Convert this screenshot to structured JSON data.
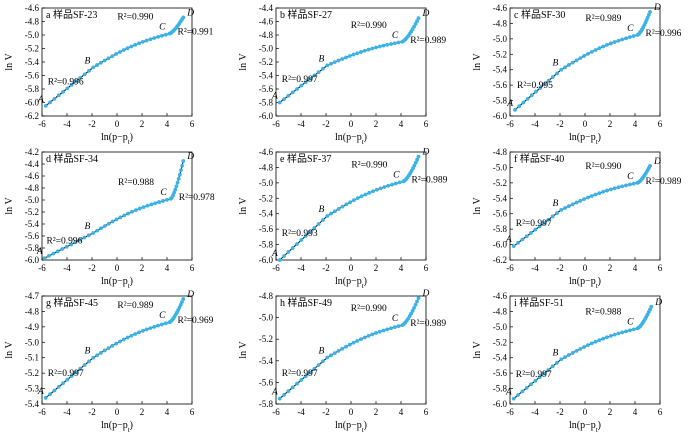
{
  "chart_data": [
    {
      "type": "scatter",
      "title": "a 样品SF-23",
      "xlabel": "ln(p−p_t)",
      "ylabel": "ln V",
      "xlim": [
        -6,
        6
      ],
      "ylim": [
        -6.2,
        -4.6
      ],
      "xticks": [
        "-6",
        "-4",
        "-2",
        "0",
        "2",
        "4",
        "6"
      ],
      "yticks": [
        "-6.2",
        "-6.0",
        "-5.8",
        "-5.6",
        "-5.4",
        "-5.2",
        "-5.0",
        "-4.8",
        "-4.6"
      ],
      "points": {
        "A": [
          -5.7,
          -6.05
        ],
        "B": [
          -1.9,
          -5.48
        ],
        "C": [
          4.2,
          -4.98
        ],
        "D": [
          5.3,
          -4.74
        ]
      },
      "segments": [
        {
          "from": "A",
          "to": "B",
          "r2": "R²=0.996"
        },
        {
          "from": "B",
          "to": "C",
          "r2": "R²=0.990"
        },
        {
          "from": "C",
          "to": "D",
          "r2": "R²=0.991"
        }
      ],
      "colors": {
        "points": "#3bb3e6",
        "line": "#111111"
      }
    },
    {
      "type": "scatter",
      "title": "b 样品SF-27",
      "xlabel": "ln(p−p_t)",
      "ylabel": "ln V",
      "xlim": [
        -6,
        6
      ],
      "ylim": [
        -6.0,
        -4.4
      ],
      "xticks": [
        "-6",
        "-4",
        "-2",
        "0",
        "2",
        "4",
        "6"
      ],
      "yticks": [
        "-6.0",
        "-5.8",
        "-5.6",
        "-5.4",
        "-5.2",
        "-5.0",
        "-4.8",
        "-4.6",
        "-4.4"
      ],
      "points": {
        "A": [
          -5.7,
          -5.8
        ],
        "B": [
          -1.9,
          -5.25
        ],
        "C": [
          4.1,
          -4.9
        ],
        "D": [
          5.4,
          -4.55
        ]
      },
      "segments": [
        {
          "from": "A",
          "to": "B",
          "r2": "R²=0.997"
        },
        {
          "from": "B",
          "to": "C",
          "r2": "R²=0.990"
        },
        {
          "from": "C",
          "to": "D",
          "r2": "R²=0.989"
        }
      ],
      "colors": {
        "points": "#3bb3e6",
        "line": "#111111"
      }
    },
    {
      "type": "scatter",
      "title": "c 样品SF-30",
      "xlabel": "ln(p−p_t)",
      "ylabel": "ln V",
      "xlim": [
        -6,
        6
      ],
      "ylim": [
        -6.0,
        -4.6
      ],
      "xticks": [
        "-6",
        "-4",
        "-2",
        "0",
        "2",
        "4",
        "6"
      ],
      "yticks": [
        "-6.0",
        "-5.8",
        "-5.6",
        "-5.4",
        "-5.2",
        "-5.0",
        "-4.8",
        "-4.6"
      ],
      "points": {
        "A": [
          -5.6,
          -5.92
        ],
        "B": [
          -1.9,
          -5.4
        ],
        "C": [
          4.2,
          -4.95
        ],
        "D": [
          5.2,
          -4.65
        ]
      },
      "segments": [
        {
          "from": "A",
          "to": "B",
          "r2": "R²=0.995"
        },
        {
          "from": "B",
          "to": "C",
          "r2": "R²=0.989"
        },
        {
          "from": "C",
          "to": "D",
          "r2": "R²=0.996"
        }
      ],
      "colors": {
        "points": "#3bb3e6",
        "line": "#111111"
      }
    },
    {
      "type": "scatter",
      "title": "d 样品SF-34",
      "xlabel": "ln(p−p_t)",
      "ylabel": "ln V",
      "xlim": [
        -6,
        6
      ],
      "ylim": [
        -6.0,
        -4.2
      ],
      "xticks": [
        "-6",
        "-4",
        "-2",
        "0",
        "2",
        "4",
        "6"
      ],
      "yticks": [
        "-6.0",
        "-5.8",
        "-5.6",
        "-5.4",
        "-5.2",
        "-5.0",
        "-4.8",
        "-4.6",
        "-4.4",
        "-4.2"
      ],
      "points": {
        "A": [
          -5.8,
          -5.97
        ],
        "B": [
          -1.9,
          -5.55
        ],
        "C": [
          4.3,
          -4.98
        ],
        "D": [
          5.3,
          -4.35
        ]
      },
      "segments": [
        {
          "from": "A",
          "to": "B",
          "r2": "R²=0.996"
        },
        {
          "from": "B",
          "to": "C",
          "r2": "R²=0.988"
        },
        {
          "from": "C",
          "to": "D",
          "r2": "R²=0.978"
        }
      ],
      "colors": {
        "points": "#3bb3e6",
        "line": "#111111"
      }
    },
    {
      "type": "scatter",
      "title": "e 样品SF-37",
      "xlabel": "ln(p−p_t)",
      "ylabel": "ln V",
      "xlim": [
        -6,
        6
      ],
      "ylim": [
        -6.0,
        -4.6
      ],
      "xticks": [
        "-6",
        "-4",
        "-2",
        "0",
        "2",
        "4",
        "6"
      ],
      "yticks": [
        "-6.0",
        "-5.8",
        "-5.6",
        "-5.4",
        "-5.2",
        "-5.0",
        "-4.8",
        "-4.6"
      ],
      "points": {
        "A": [
          -5.7,
          -6.0
        ],
        "B": [
          -1.9,
          -5.43
        ],
        "C": [
          4.2,
          -4.98
        ],
        "D": [
          5.4,
          -4.66
        ]
      },
      "segments": [
        {
          "from": "A",
          "to": "B",
          "r2": "R²=0.993"
        },
        {
          "from": "B",
          "to": "C",
          "r2": "R²=0.990"
        },
        {
          "from": "C",
          "to": "D",
          "r2": "R²=0.989"
        }
      ],
      "colors": {
        "points": "#3bb3e6",
        "line": "#111111"
      }
    },
    {
      "type": "scatter",
      "title": "f 样品SF-40",
      "xlabel": "ln(p−p_t)",
      "ylabel": "ln V",
      "xlim": [
        -6,
        6
      ],
      "ylim": [
        -6.2,
        -4.8
      ],
      "xticks": [
        "-6",
        "-4",
        "-2",
        "0",
        "2",
        "4",
        "6"
      ],
      "yticks": [
        "-6.2",
        "-6.0",
        "-5.8",
        "-5.6",
        "-5.4",
        "-5.2",
        "-5.0",
        "-4.8"
      ],
      "points": {
        "A": [
          -5.7,
          -6.02
        ],
        "B": [
          -1.9,
          -5.55
        ],
        "C": [
          4.2,
          -5.2
        ],
        "D": [
          5.2,
          -4.98
        ]
      },
      "segments": [
        {
          "from": "A",
          "to": "B",
          "r2": "R²=0.997"
        },
        {
          "from": "B",
          "to": "C",
          "r2": "R²=0.990"
        },
        {
          "from": "C",
          "to": "D",
          "r2": "R²=0.989"
        }
      ],
      "colors": {
        "points": "#3bb3e6",
        "line": "#111111"
      }
    },
    {
      "type": "scatter",
      "title": "g 样品SF-45",
      "xlabel": "ln(p−p_t)",
      "ylabel": "ln V",
      "xlim": [
        -6,
        6
      ],
      "ylim": [
        -5.4,
        -4.7
      ],
      "xticks": [
        "-6",
        "-4",
        "-2",
        "0",
        "2",
        "4",
        "6"
      ],
      "yticks": [
        "-5.4",
        "-5.3",
        "-5.2",
        "-5.1",
        "-5.0",
        "-4.9",
        "-4.8",
        "-4.7"
      ],
      "points": {
        "A": [
          -5.7,
          -5.36
        ],
        "B": [
          -1.9,
          -5.1
        ],
        "C": [
          4.2,
          -4.87
        ],
        "D": [
          5.3,
          -4.72
        ]
      },
      "segments": [
        {
          "from": "A",
          "to": "B",
          "r2": "R²=0.997"
        },
        {
          "from": "B",
          "to": "C",
          "r2": "R²=0.989"
        },
        {
          "from": "C",
          "to": "D",
          "r2": "R²=0.969"
        }
      ],
      "colors": {
        "points": "#3bb3e6",
        "line": "#111111"
      }
    },
    {
      "type": "scatter",
      "title": "h 样品SF-49",
      "xlabel": "ln(p−p_t)",
      "ylabel": "ln V",
      "xlim": [
        -6,
        6
      ],
      "ylim": [
        -5.8,
        -4.8
      ],
      "xticks": [
        "-6",
        "-4",
        "-2",
        "0",
        "2",
        "4",
        "6"
      ],
      "yticks": [
        "-5.8",
        "-5.6",
        "-5.4",
        "-5.2",
        "-5.0",
        "-4.8"
      ],
      "points": {
        "A": [
          -5.7,
          -5.75
        ],
        "B": [
          -1.9,
          -5.37
        ],
        "C": [
          4.1,
          -5.07
        ],
        "D": [
          5.4,
          -4.82
        ]
      },
      "segments": [
        {
          "from": "A",
          "to": "B",
          "r2": "R²=0.997"
        },
        {
          "from": "B",
          "to": "C",
          "r2": "R²=0.990"
        },
        {
          "from": "C",
          "to": "D",
          "r2": "R²=0.989"
        }
      ],
      "colors": {
        "points": "#3bb3e6",
        "line": "#111111"
      }
    },
    {
      "type": "scatter",
      "title": "i 样品SF-51",
      "xlabel": "ln(p−p_t)",
      "ylabel": "ln V",
      "xlim": [
        -6,
        6
      ],
      "ylim": [
        -6.0,
        -4.6
      ],
      "xticks": [
        "-6",
        "-4",
        "-2",
        "0",
        "2",
        "4",
        "6"
      ],
      "yticks": [
        "-6.0",
        "-5.8",
        "-5.6",
        "-5.4",
        "-5.2",
        "-5.0",
        "-4.8",
        "-4.6"
      ],
      "points": {
        "A": [
          -5.7,
          -5.93
        ],
        "B": [
          -1.9,
          -5.42
        ],
        "C": [
          4.2,
          -5.02
        ],
        "D": [
          5.3,
          -4.74
        ]
      },
      "segments": [
        {
          "from": "A",
          "to": "B",
          "r2": "R²=0.997"
        },
        {
          "from": "B",
          "to": "C",
          "r2": "R²=0.988"
        },
        {
          "from": "C",
          "to": "D",
          "r2": null
        }
      ],
      "colors": {
        "points": "#3bb3e6",
        "line": "#111111"
      }
    }
  ]
}
